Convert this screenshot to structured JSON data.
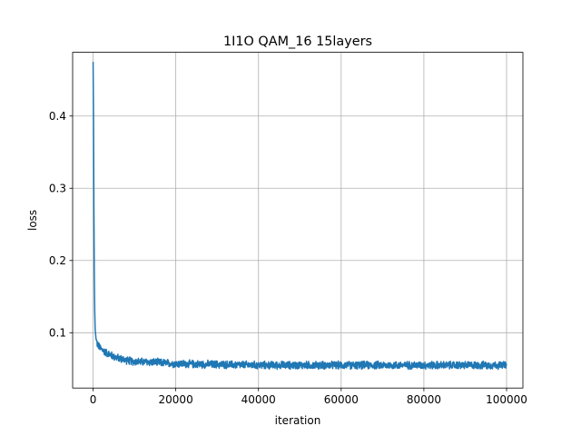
{
  "chart_data": {
    "type": "line",
    "title": "1I1O QAM_16 15layers",
    "xlabel": "iteration",
    "ylabel": "loss",
    "xlim": [
      -4950,
      103950
    ],
    "ylim": [
      0.0234,
      0.4882
    ],
    "x_ticks": [
      {
        "value": 0,
        "label": "0"
      },
      {
        "value": 20000,
        "label": "20000"
      },
      {
        "value": 40000,
        "label": "40000"
      },
      {
        "value": 60000,
        "label": "60000"
      },
      {
        "value": 80000,
        "label": "80000"
      },
      {
        "value": 100000,
        "label": "100000"
      }
    ],
    "y_ticks": [
      {
        "value": 0.1,
        "label": "0.1"
      },
      {
        "value": 0.2,
        "label": "0.2"
      },
      {
        "value": 0.3,
        "label": "0.3"
      },
      {
        "value": 0.4,
        "label": "0.4"
      }
    ],
    "grid": true,
    "series": [
      {
        "color": "#1f77b4",
        "noise_amplitude": 0.0045,
        "x": [
          0,
          100,
          200,
          300,
          400,
          500,
          700,
          1000,
          1500,
          2000,
          3000,
          4000,
          5000,
          6000,
          8000,
          10000,
          15000,
          20000,
          30000,
          40000,
          50000,
          60000,
          70000,
          80000,
          90000,
          100000
        ],
        "y": [
          0.475,
          0.4,
          0.27,
          0.18,
          0.13,
          0.105,
          0.092,
          0.085,
          0.08,
          0.077,
          0.073,
          0.07,
          0.067,
          0.065,
          0.062,
          0.06,
          0.059,
          0.057,
          0.056,
          0.055,
          0.055,
          0.055,
          0.055,
          0.055,
          0.055,
          0.055
        ]
      }
    ]
  }
}
